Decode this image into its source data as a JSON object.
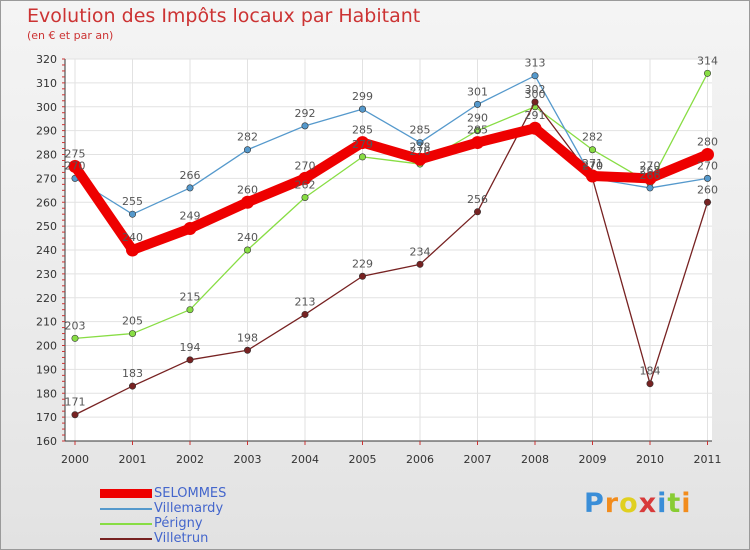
{
  "chart_data": {
    "type": "line",
    "title": "Evolution des Impôts locaux par Habitant",
    "subtitle": "(en € et par an)",
    "categories": [
      "2000",
      "2001",
      "2002",
      "2003",
      "2004",
      "2005",
      "2006",
      "2007",
      "2008",
      "2009",
      "2010",
      "2011"
    ],
    "ylim": [
      160,
      320
    ],
    "yticks": [
      160,
      170,
      180,
      190,
      200,
      210,
      220,
      230,
      240,
      250,
      260,
      270,
      280,
      290,
      300,
      310,
      320
    ],
    "grid": true,
    "legend_position": "bottom-left",
    "series": [
      {
        "name": "SELOMMES",
        "color": "#ee0000",
        "values": [
          275,
          240,
          249,
          260,
          270,
          285,
          278,
          285,
          291,
          271,
          270,
          280
        ],
        "labels": [
          "275",
          "240",
          "249",
          "260",
          "270",
          "285",
          "278",
          "285",
          "291",
          "271",
          "270",
          "280"
        ]
      },
      {
        "name": "Villemardy",
        "color": "#5599cc",
        "values": [
          270,
          255,
          266,
          282,
          292,
          299,
          285,
          301,
          313,
          270,
          266,
          270
        ],
        "labels": [
          "270",
          "255",
          "266",
          "282",
          "292",
          "299",
          "285",
          "301",
          "313",
          "270",
          "266",
          "270"
        ]
      },
      {
        "name": "Périgny",
        "color": "#88dd44",
        "values": [
          203,
          205,
          215,
          240,
          262,
          279,
          276,
          290,
          300,
          282,
          268,
          314
        ],
        "labels": [
          "203",
          "205",
          "215",
          "240",
          "262",
          "279",
          "276",
          "290",
          "300",
          "282",
          "268",
          "314"
        ]
      },
      {
        "name": "Villetrun",
        "color": "#772222",
        "values": [
          171,
          183,
          194,
          198,
          213,
          229,
          234,
          256,
          302,
          270,
          184,
          260
        ],
        "labels": [
          "171",
          "183",
          "194",
          "198",
          "213",
          "229",
          "234",
          "256",
          "302",
          "270",
          "184",
          "260"
        ]
      }
    ]
  },
  "logo": {
    "text": "Proxiti",
    "letters": [
      "P",
      "r",
      "o",
      "x",
      "i",
      "t",
      "i"
    ],
    "colors": [
      "#3a8ed8",
      "#f28c1c",
      "#e0d020",
      "#d83a3a",
      "#3a8ed8",
      "#88cc33",
      "#f28c1c"
    ]
  }
}
